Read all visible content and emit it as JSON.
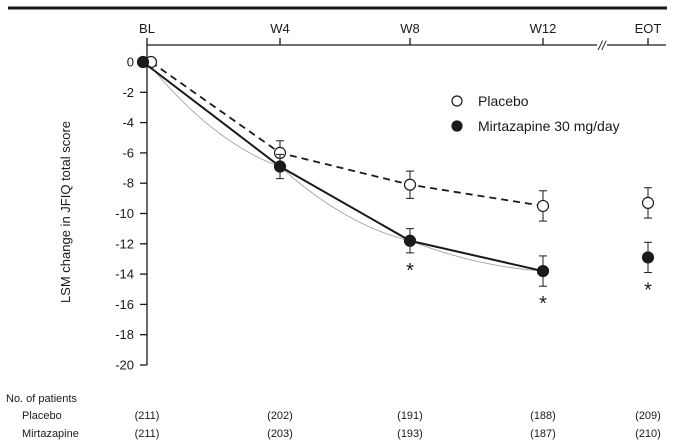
{
  "chart_data": {
    "type": "line",
    "ylabel": "LSM change in JFIQ total score",
    "ylim": [
      -20,
      0
    ],
    "y_ticks": [
      0,
      -2,
      -4,
      -6,
      -8,
      -10,
      -12,
      -14,
      -16,
      -18,
      -20
    ],
    "y_tick_labels": [
      "0",
      "-2",
      "-4",
      "-6",
      "-8",
      "-10",
      "-12",
      "-14",
      "-16",
      "-18",
      "-20"
    ],
    "categories": [
      "BL",
      "W4",
      "W8",
      "W12",
      "EOT"
    ],
    "axis_break_symbol": "//",
    "legend_position": "top-right",
    "series": [
      {
        "name": "Placebo",
        "marker": "open-circle",
        "line_style": "dashed",
        "values": [
          0,
          -6.0,
          -8.1,
          -9.5,
          -9.3
        ],
        "error": [
          0,
          0.8,
          0.9,
          1.0,
          1.0
        ]
      },
      {
        "name": "Mirtazapine 30 mg/day",
        "marker": "filled-circle",
        "line_style": "solid",
        "values": [
          0,
          -6.9,
          -11.8,
          -13.8,
          -12.9
        ],
        "error": [
          0,
          0.8,
          0.8,
          1.0,
          1.0
        ]
      }
    ],
    "significance": [
      {
        "category": "W8",
        "label": "*"
      },
      {
        "category": "W12",
        "label": "*"
      },
      {
        "category": "EOT",
        "label": "*"
      }
    ],
    "patients_table": {
      "title": "No. of patients",
      "rows": [
        {
          "label": "Placebo",
          "values": [
            "(211)",
            "(202)",
            "(191)",
            "(188)",
            "(209)"
          ]
        },
        {
          "label": "Mirtazapine",
          "values": [
            "(211)",
            "(203)",
            "(193)",
            "(187)",
            "(210)"
          ]
        }
      ]
    },
    "colors": {
      "line": "#1a1a1a",
      "trend": "#9a9a9a"
    }
  }
}
